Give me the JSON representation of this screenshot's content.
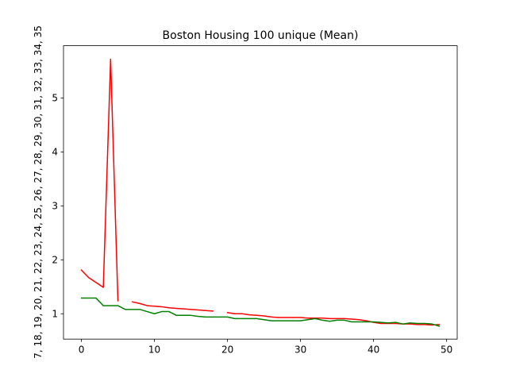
{
  "chart_data": {
    "type": "line",
    "title": "Boston Housing 100 unique (Mean)",
    "xlabel": "",
    "ylabel": "7, 18, 19, 20, 21, 22, 23, 24, 25, 26, 27, 28, 29, 30, 31, 32, 33, 34, 35",
    "xlim": [
      -2.45,
      51.45
    ],
    "ylim": [
      0.53,
      5.97
    ],
    "x_ticks": [
      0,
      10,
      20,
      30,
      40,
      50
    ],
    "y_ticks": [
      1,
      2,
      3,
      4,
      5
    ],
    "grid": false,
    "legend": "none",
    "series": [
      {
        "color": "#ff0000",
        "points": [
          [
            0,
            1.81
          ],
          [
            1,
            1.67
          ],
          [
            2,
            1.58
          ],
          [
            3,
            1.49
          ],
          [
            4,
            5.72
          ],
          [
            5,
            1.24
          ],
          [
            6,
            null
          ],
          [
            7,
            1.22
          ],
          [
            8,
            1.19
          ],
          [
            9,
            1.15
          ],
          [
            10,
            1.14
          ],
          [
            11,
            1.13
          ],
          [
            12,
            1.11
          ],
          [
            13,
            1.1
          ],
          [
            14,
            1.09
          ],
          [
            15,
            1.08
          ],
          [
            16,
            1.07
          ],
          [
            17,
            1.06
          ],
          [
            18,
            1.05
          ],
          [
            19,
            null
          ],
          [
            20,
            1.02
          ],
          [
            21,
            1.0
          ],
          [
            22,
            1.0
          ],
          [
            23,
            0.98
          ],
          [
            24,
            0.97
          ],
          [
            25,
            0.96
          ],
          [
            26,
            0.94
          ],
          [
            27,
            0.93
          ],
          [
            28,
            0.93
          ],
          [
            29,
            0.93
          ],
          [
            30,
            0.93
          ],
          [
            31,
            0.92
          ],
          [
            32,
            0.92
          ],
          [
            33,
            0.92
          ],
          [
            34,
            0.91
          ],
          [
            35,
            0.91
          ],
          [
            36,
            0.91
          ],
          [
            37,
            0.9
          ],
          [
            38,
            0.89
          ],
          [
            39,
            0.87
          ],
          [
            40,
            0.84
          ],
          [
            41,
            0.82
          ],
          [
            42,
            0.82
          ],
          [
            43,
            0.82
          ],
          [
            44,
            0.81
          ],
          [
            45,
            0.81
          ],
          [
            46,
            0.8
          ],
          [
            47,
            0.8
          ],
          [
            48,
            0.79
          ],
          [
            49,
            0.8
          ]
        ]
      },
      {
        "color": "#008000",
        "points": [
          [
            0,
            1.29
          ],
          [
            1,
            1.29
          ],
          [
            2,
            1.29
          ],
          [
            3,
            1.15
          ],
          [
            4,
            1.15
          ],
          [
            5,
            1.15
          ],
          [
            6,
            1.08
          ],
          [
            7,
            1.08
          ],
          [
            8,
            1.08
          ],
          [
            9,
            1.04
          ],
          [
            10,
            1.0
          ],
          [
            11,
            1.04
          ],
          [
            12,
            1.04
          ],
          [
            13,
            0.97
          ],
          [
            14,
            0.97
          ],
          [
            15,
            0.97
          ],
          [
            16,
            0.95
          ],
          [
            17,
            0.94
          ],
          [
            18,
            0.94
          ],
          [
            19,
            0.94
          ],
          [
            20,
            0.94
          ],
          [
            21,
            0.91
          ],
          [
            22,
            0.91
          ],
          [
            23,
            0.91
          ],
          [
            24,
            0.91
          ],
          [
            25,
            0.89
          ],
          [
            26,
            0.87
          ],
          [
            27,
            0.87
          ],
          [
            28,
            0.87
          ],
          [
            29,
            0.87
          ],
          [
            30,
            0.87
          ],
          [
            31,
            0.89
          ],
          [
            32,
            0.91
          ],
          [
            33,
            0.88
          ],
          [
            34,
            0.86
          ],
          [
            35,
            0.88
          ],
          [
            36,
            0.88
          ],
          [
            37,
            0.85
          ],
          [
            38,
            0.85
          ],
          [
            39,
            0.85
          ],
          [
            40,
            0.85
          ],
          [
            41,
            0.84
          ],
          [
            42,
            0.83
          ],
          [
            43,
            0.84
          ],
          [
            44,
            0.81
          ],
          [
            45,
            0.83
          ],
          [
            46,
            0.82
          ],
          [
            47,
            0.82
          ],
          [
            48,
            0.81
          ],
          [
            49,
            0.77
          ]
        ]
      }
    ]
  }
}
